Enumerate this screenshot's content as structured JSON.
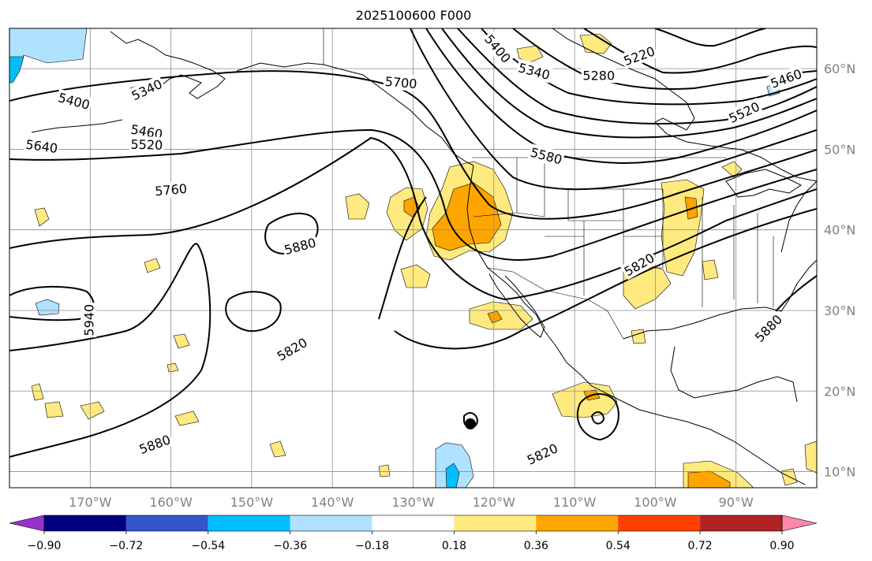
{
  "title": "2025100600 F000",
  "map": {
    "lon_range": [
      -180,
      -80
    ],
    "lat_range": [
      8,
      65
    ],
    "lon_ticks": [
      {
        "lon": -170,
        "label": "170°W"
      },
      {
        "lon": -160,
        "label": "160°W"
      },
      {
        "lon": -150,
        "label": "150°W"
      },
      {
        "lon": -140,
        "label": "140°W"
      },
      {
        "lon": -130,
        "label": "130°W"
      },
      {
        "lon": -120,
        "label": "120°W"
      },
      {
        "lon": -110,
        "label": "110°W"
      },
      {
        "lon": -100,
        "label": "100°W"
      },
      {
        "lon": -90,
        "label": "90°W"
      }
    ],
    "lat_ticks": [
      {
        "lat": 60,
        "label": "60°N"
      },
      {
        "lat": 50,
        "label": "50°N"
      },
      {
        "lat": 40,
        "label": "40°N"
      },
      {
        "lat": 30,
        "label": "30°N"
      },
      {
        "lat": 20,
        "label": "20°N"
      },
      {
        "lat": 10,
        "label": "10°N"
      }
    ],
    "grid": true,
    "contour_labels": [
      {
        "text": "5220",
        "lon": -102,
        "lat": 61.6,
        "rot": -20
      },
      {
        "text": "5280",
        "lon": -107,
        "lat": 59.2,
        "rot": 0
      },
      {
        "text": "5340",
        "lon": -115,
        "lat": 59.7,
        "rot": 15
      },
      {
        "text": "5400",
        "lon": -119.5,
        "lat": 62.5,
        "rot": 50
      },
      {
        "text": "5460",
        "lon": -83.8,
        "lat": 58.8,
        "rot": -20
      },
      {
        "text": "5520",
        "lon": -89,
        "lat": 54.6,
        "rot": -25
      },
      {
        "text": "5700",
        "lon": -131.5,
        "lat": 58.3,
        "rot": 5
      },
      {
        "text": "5580",
        "lon": -113.5,
        "lat": 49.2,
        "rot": 15
      },
      {
        "text": "5340",
        "lon": -163,
        "lat": 57.4,
        "rot": -25
      },
      {
        "text": "5400",
        "lon": -172,
        "lat": 56,
        "rot": 15
      },
      {
        "text": "5460",
        "lon": -163,
        "lat": 52.2,
        "rot": 10
      },
      {
        "text": "5520",
        "lon": -163,
        "lat": 50.6,
        "rot": 2
      },
      {
        "text": "5640",
        "lon": -176,
        "lat": 50.4,
        "rot": 8
      },
      {
        "text": "5760",
        "lon": -160,
        "lat": 45,
        "rot": -5
      },
      {
        "text": "5880",
        "lon": -144,
        "lat": 38,
        "rot": -15
      },
      {
        "text": "5940",
        "lon": -170.2,
        "lat": 28.8,
        "rot": -90
      },
      {
        "text": "5820",
        "lon": -145,
        "lat": 25.2,
        "rot": -30
      },
      {
        "text": "5880",
        "lon": -162,
        "lat": 13.4,
        "rot": -20
      },
      {
        "text": "5820",
        "lon": -102,
        "lat": 35.7,
        "rot": -30
      },
      {
        "text": "5880",
        "lon": -86,
        "lat": 27.8,
        "rot": -45
      },
      {
        "text": "5820",
        "lon": -114,
        "lat": 12.2,
        "rot": -25
      }
    ]
  },
  "colorbar": {
    "boundaries": [
      -0.9,
      -0.72,
      -0.54,
      -0.36,
      -0.18,
      0.18,
      0.36,
      0.54,
      0.72,
      0.9
    ],
    "tick_labels": [
      "−0.90",
      "−0.72",
      "−0.54",
      "−0.36",
      "−0.18",
      "0.18",
      "0.36",
      "0.54",
      "0.72",
      "0.90"
    ],
    "colors": [
      "#9932cc",
      "#000080",
      "#3355cc",
      "#00bfff",
      "#b0e2ff",
      "#ffffff",
      "#ffea80",
      "#ffa500",
      "#ff4000",
      "#b22222",
      "#ff88aa"
    ],
    "extend": "both"
  }
}
